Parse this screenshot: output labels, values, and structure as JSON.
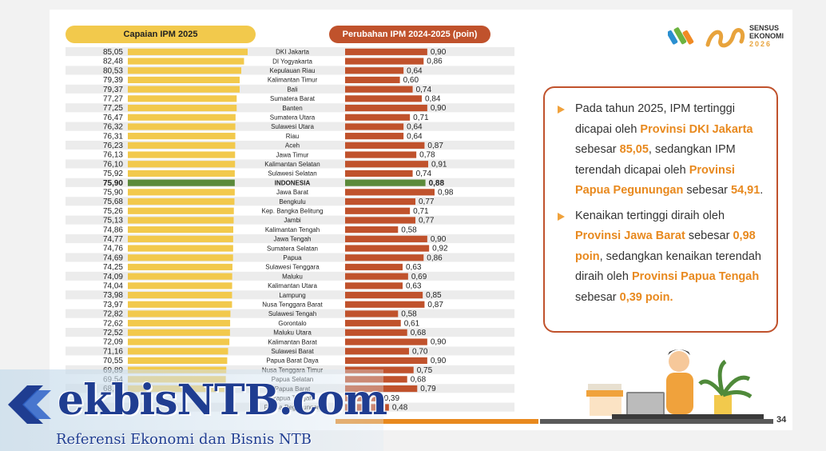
{
  "headers": {
    "left": "Capaian IPM 2025",
    "right": "Perubahan IPM 2024-2025 (poin)"
  },
  "logo": {
    "line1": "SENSUS",
    "line2": "EKONOMI",
    "year": "2026"
  },
  "callout": {
    "p1": [
      {
        "t": "Pada tahun 2025, IPM tertinggi dicapai oleh ",
        "hl": false
      },
      {
        "t": "Provinsi DKI Jakarta",
        "hl": true
      },
      {
        "t": " sebesar ",
        "hl": false
      },
      {
        "t": "85,05",
        "hl": true
      },
      {
        "t": ", sedangkan IPM terendah dicapai oleh ",
        "hl": false
      },
      {
        "t": "Provinsi Papua Pegunungan",
        "hl": true
      },
      {
        "t": " sebesar ",
        "hl": false
      },
      {
        "t": "54,91",
        "hl": true
      },
      {
        "t": ".",
        "hl": false
      }
    ],
    "p2": [
      {
        "t": "Kenaikan tertinggi diraih oleh ",
        "hl": false
      },
      {
        "t": "Provinsi Jawa Barat",
        "hl": true
      },
      {
        "t": " sebesar ",
        "hl": false
      },
      {
        "t": "0,98 poin",
        "hl": true
      },
      {
        "t": ", sedangkan kenaikan terendah diraih oleh ",
        "hl": false
      },
      {
        "t": "Provinsi Papua Tengah",
        "hl": true
      },
      {
        "t": " sebesar ",
        "hl": false
      },
      {
        "t": "0,39 poin.",
        "hl": true
      }
    ]
  },
  "page_number": "34",
  "watermark": {
    "title": "ekbisNTB.com",
    "subtitle": "Referensi Ekonomi dan Bisnis NTB"
  },
  "colors": {
    "bar_left": "#f2c94c",
    "bar_right": "#c0522c",
    "highlight": "#5b8a3a",
    "accent": "#e8891e"
  },
  "chart_data": {
    "type": "bar",
    "orientation": "horizontal",
    "highlight_category": "INDONESIA",
    "categories": [
      "DKI Jakarta",
      "DI Yogyakarta",
      "Kepulauan Riau",
      "Kalimantan Timur",
      "Bali",
      "Sumatera Barat",
      "Banten",
      "Sumatera Utara",
      "Sulawesi Utara",
      "Riau",
      "Aceh",
      "Jawa Timur",
      "Kalimantan Selatan",
      "Sulawesi Selatan",
      "INDONESIA",
      "Jawa Barat",
      "Bengkulu",
      "Kep. Bangka Belitung",
      "Jambi",
      "Kalimantan Tengah",
      "Jawa Tengah",
      "Sumatera Selatan",
      "Papua",
      "Sulawesi Tenggara",
      "Maluku",
      "Kalimantan Utara",
      "Lampung",
      "Nusa Tenggara Barat",
      "Sulawesi Tengah",
      "Gorontalo",
      "Maluku Utara",
      "Kalimantan Barat",
      "Sulawesi Barat",
      "Papua Barat Daya",
      "Nusa Tenggara Timur",
      "Papua Selatan",
      "Papua Barat",
      "Papua Tengah",
      "Papua Pegunungan"
    ],
    "series": [
      {
        "name": "Capaian IPM 2025",
        "values": [
          85.05,
          82.48,
          80.53,
          79.39,
          79.37,
          77.27,
          77.25,
          76.47,
          76.32,
          76.31,
          76.23,
          76.13,
          76.1,
          75.92,
          75.9,
          75.9,
          75.68,
          75.26,
          75.13,
          74.86,
          74.77,
          74.76,
          74.69,
          74.25,
          74.09,
          74.04,
          73.98,
          73.97,
          72.82,
          72.62,
          72.52,
          72.09,
          71.16,
          70.55,
          69.89,
          69.54,
          68.48,
          null,
          null
        ],
        "labels": [
          "85,05",
          "82,48",
          "80,53",
          "79,39",
          "79,37",
          "77,27",
          "77,25",
          "76,47",
          "76,32",
          "76,31",
          "76,23",
          "76,13",
          "76,10",
          "75,92",
          "75,90",
          "75,90",
          "75,68",
          "75,26",
          "75,13",
          "74,86",
          "74,77",
          "74,76",
          "74,69",
          "74,25",
          "74,09",
          "74,04",
          "73,98",
          "73,97",
          "72,82",
          "72,62",
          "72,52",
          "72,09",
          "71,16",
          "70,55",
          "69,89",
          "69,54",
          "68,48",
          "",
          ""
        ]
      },
      {
        "name": "Perubahan IPM 2024-2025 (poin)",
        "values": [
          0.9,
          0.86,
          0.64,
          0.6,
          0.74,
          0.84,
          0.9,
          0.71,
          0.64,
          0.64,
          0.87,
          0.78,
          0.91,
          0.74,
          0.88,
          0.98,
          0.77,
          0.71,
          0.77,
          0.58,
          0.9,
          0.92,
          0.86,
          0.63,
          0.69,
          0.63,
          0.85,
          0.87,
          0.58,
          0.61,
          0.68,
          0.9,
          0.7,
          0.9,
          0.75,
          0.68,
          0.79,
          0.39,
          0.48
        ],
        "labels": [
          "0,90",
          "0,86",
          "0,64",
          "0,60",
          "0,74",
          "0,84",
          "0,90",
          "0,71",
          "0,64",
          "0,64",
          "0,87",
          "0,78",
          "0,91",
          "0,74",
          "0,88",
          "0,98",
          "0,77",
          "0,71",
          "0,77",
          "0,58",
          "0,90",
          "0,92",
          "0,86",
          "0,63",
          "0,69",
          "0,63",
          "0,85",
          "0,87",
          "0,58",
          "0,61",
          "0,68",
          "0,90",
          "0,70",
          "0,90",
          "0,75",
          "0,68",
          "0,79",
          "0,39",
          "0,48"
        ]
      }
    ]
  }
}
